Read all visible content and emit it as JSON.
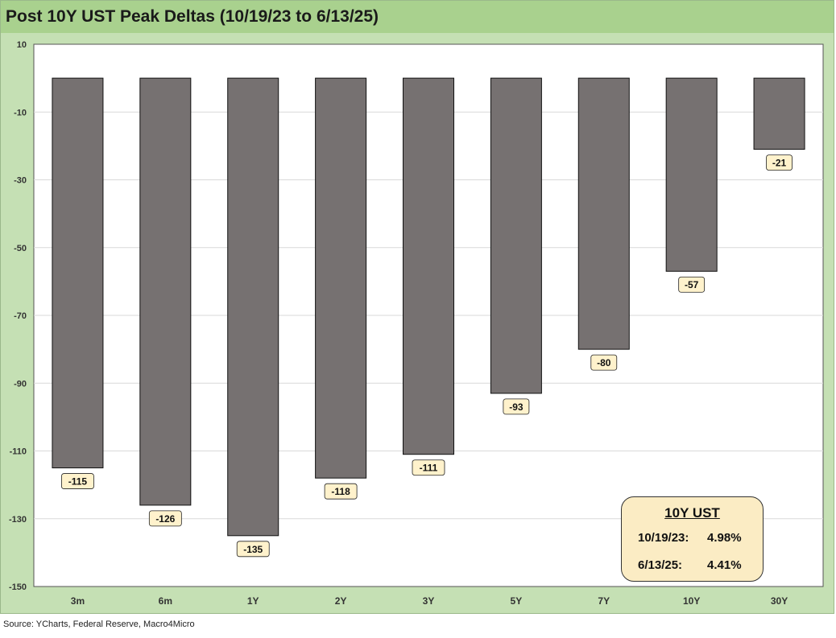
{
  "chart_data": {
    "type": "bar",
    "title": "Post 10Y UST Peak Deltas (10/19/23 to 6/13/25)",
    "categories": [
      "3m",
      "6m",
      "1Y",
      "2Y",
      "3Y",
      "5Y",
      "7Y",
      "10Y",
      "30Y"
    ],
    "values": [
      -115,
      -126,
      -135,
      -118,
      -111,
      -93,
      -80,
      -57,
      -21
    ],
    "data_labels": [
      "-115",
      "-126",
      "-135",
      "-118",
      "-111",
      "-93",
      "-80",
      "-57",
      "-21"
    ],
    "ylim": [
      -150,
      10
    ],
    "yticks": [
      10,
      -10,
      -30,
      -50,
      -70,
      -90,
      -110,
      -130,
      -150
    ],
    "grid": true,
    "bar_color": "#767171",
    "label_fill": "#fff2cc"
  },
  "source": "Source: YCharts, Federal Reserve, Macro4Micro",
  "info_box": {
    "title": "10Y UST",
    "rows": [
      {
        "date": "10/19/23:",
        "value": "4.98%"
      },
      {
        "date": "6/13/25:",
        "value": "4.41%"
      }
    ]
  },
  "colors": {
    "frame": "#c5e0b4",
    "title_bar": "#a9d18e",
    "plot_background": "#ffffff",
    "info_box_fill": "#fbecc4"
  }
}
